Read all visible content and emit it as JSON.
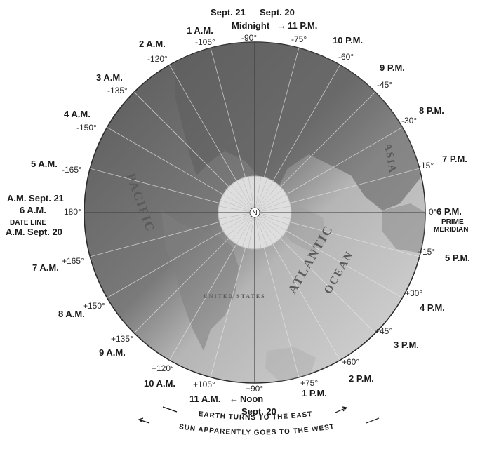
{
  "map": {
    "center_label": "N",
    "top_labels": {
      "left_date": "Sept. 21",
      "right_date": "Sept. 20",
      "midnight": "Midnight",
      "eleven_pm": "11 P.M."
    },
    "bottom_labels": {
      "eleven_am": "11 A.M.",
      "noon": "Noon",
      "date": "Sept. 20"
    },
    "left_labels": {
      "am_sept21": "A.M. Sept. 21",
      "six_am": "6 A.M.",
      "date_line": "DATE LINE",
      "am_sept20": "A.M. Sept. 20"
    },
    "right_labels": {
      "six_pm": "6 P.M.",
      "prime": "PRIME",
      "meridian": "MERIDIAN"
    },
    "hours": {
      "h1am": "1 A.M.",
      "h2am": "2 A.M.",
      "h3am": "3 A.M.",
      "h4am": "4 A.M.",
      "h5am": "5 A.M.",
      "h7am": "7 A.M.",
      "h8am": "8 A.M.",
      "h9am": "9 A.M.",
      "h10am": "10 A.M.",
      "h10pm": "10 P.M.",
      "h9pm": "9 P.M.",
      "h8pm": "8 P.M.",
      "h7pm": "7 P.M.",
      "h5pm": "5 P.M.",
      "h4pm": "4 P.M.",
      "h3pm": "3 P.M.",
      "h2pm": "2 P.M.",
      "h1pm": "1 P.M."
    },
    "longitudes": {
      "m90": "-90°",
      "m105": "-105°",
      "m120": "-120°",
      "m135": "-135°",
      "m150": "-150°",
      "m165": "-165°",
      "d180": "180°",
      "p165": "+165°",
      "p150": "+150°",
      "p135": "+135°",
      "p120": "+120°",
      "p105": "+105°",
      "p90": "+90°",
      "p75": "+75°",
      "p60": "+60°",
      "p45": "+45°",
      "p30": "+30°",
      "p15": "+15°",
      "d0": "0°",
      "m15": "-15°",
      "m30": "-30°",
      "m45": "-45°",
      "m60": "-60°",
      "m75": "-75°"
    },
    "map_words": {
      "pacific": "PACIFIC",
      "atlantic": "ATLANTIC",
      "ocean": "OCEAN",
      "asia": "ASIA",
      "united_states": "UNITED STATES"
    },
    "arc_text": {
      "earth": "EARTH TURNS TO THE EAST",
      "sun": "SUN APPARENTLY GOES TO THE WEST"
    },
    "colors": {
      "land_dark": "#5f5f5f",
      "sea_dark": "#7b7b7b",
      "sea_light": "#c9c9c9",
      "land_light": "#9a9a9a",
      "ink": "#1a1a1a"
    }
  }
}
